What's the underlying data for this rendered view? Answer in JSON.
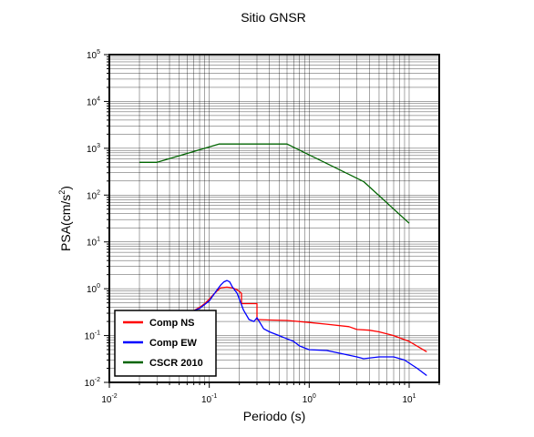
{
  "chart_data": {
    "type": "line",
    "title": "Sitio GNSR",
    "xlabel": "Periodo (s)",
    "ylabel": {
      "base": "PSA(cm/s",
      "sup": "2",
      "tail": ")"
    },
    "xscale": "log",
    "yscale": "log",
    "xlim": [
      0.01,
      20
    ],
    "ylim": [
      0.01,
      100000
    ],
    "grid": true,
    "legend_position": "bottom-left",
    "x_ticks": [
      {
        "value": 0.01,
        "base": "10",
        "exp": "-2"
      },
      {
        "value": 0.1,
        "base": "10",
        "exp": "-1"
      },
      {
        "value": 1,
        "base": "10",
        "exp": "0"
      },
      {
        "value": 10,
        "base": "10",
        "exp": "1"
      }
    ],
    "y_ticks": [
      {
        "value": 0.01,
        "base": "10",
        "exp": "-2"
      },
      {
        "value": 0.1,
        "base": "10",
        "exp": "-1"
      },
      {
        "value": 1,
        "base": "10",
        "exp": "0"
      },
      {
        "value": 10,
        "base": "10",
        "exp": "1"
      },
      {
        "value": 100,
        "base": "10",
        "exp": "2"
      },
      {
        "value": 1000,
        "base": "10",
        "exp": "3"
      },
      {
        "value": 10000,
        "base": "10",
        "exp": "4"
      },
      {
        "value": 100000,
        "base": "10",
        "exp": "5"
      }
    ],
    "series": [
      {
        "name": "Comp NS",
        "color": "#ff0000",
        "x": [
          0.06,
          0.07,
          0.08,
          0.09,
          0.1,
          0.11,
          0.12,
          0.13,
          0.15,
          0.17,
          0.19,
          0.21,
          0.21,
          0.3,
          0.3,
          0.4,
          0.6,
          1.0,
          1.5,
          2.5,
          3.0,
          4.0,
          5.0,
          7.0,
          10.0,
          15.0
        ],
        "y": [
          0.3,
          0.34,
          0.4,
          0.48,
          0.6,
          0.75,
          0.9,
          1.05,
          1.08,
          1.05,
          0.95,
          0.8,
          0.48,
          0.48,
          0.22,
          0.215,
          0.21,
          0.19,
          0.175,
          0.155,
          0.135,
          0.13,
          0.12,
          0.1,
          0.075,
          0.045
        ]
      },
      {
        "name": "Comp EW",
        "color": "#0000ff",
        "x": [
          0.06,
          0.08,
          0.1,
          0.12,
          0.13,
          0.14,
          0.15,
          0.16,
          0.17,
          0.19,
          0.2,
          0.22,
          0.25,
          0.28,
          0.3,
          0.35,
          0.4,
          0.5,
          0.6,
          0.7,
          0.8,
          1.0,
          1.5,
          2.0,
          3.0,
          3.5,
          5.0,
          7.0,
          9.0,
          12.0,
          15.0
        ],
        "y": [
          0.3,
          0.38,
          0.55,
          0.95,
          1.2,
          1.4,
          1.5,
          1.4,
          1.1,
          0.8,
          0.6,
          0.35,
          0.22,
          0.2,
          0.24,
          0.14,
          0.12,
          0.1,
          0.085,
          0.075,
          0.06,
          0.05,
          0.048,
          0.042,
          0.035,
          0.032,
          0.035,
          0.035,
          0.03,
          0.02,
          0.014
        ]
      },
      {
        "name": "CSCR 2010",
        "color": "#006400",
        "x": [
          0.02,
          0.03,
          0.125,
          0.6,
          3.5,
          10.0
        ],
        "y": [
          500,
          500,
          1230,
          1230,
          195,
          25
        ]
      }
    ]
  }
}
